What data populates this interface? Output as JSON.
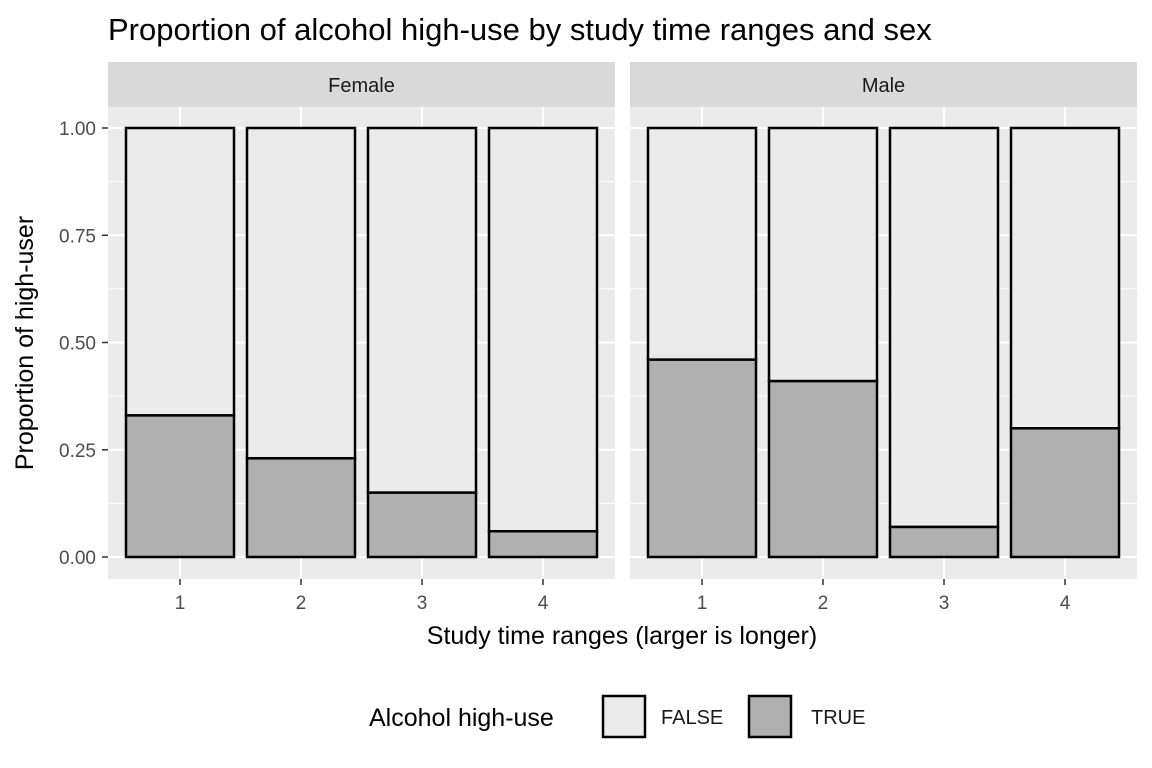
{
  "chart_data": {
    "type": "bar",
    "stacked": true,
    "title": "Proportion of alcohol high-use by study time ranges and sex",
    "xlabel": "Study time ranges (larger is longer)",
    "ylabel": "Proportion of high-user",
    "ylim": [
      0,
      1
    ],
    "yticks": [
      "0.00",
      "0.25",
      "0.50",
      "0.75",
      "1.00"
    ],
    "categories": [
      "1",
      "2",
      "3",
      "4"
    ],
    "legend": {
      "title": "Alcohol high-use",
      "position": "bottom",
      "entries": [
        "FALSE",
        "TRUE"
      ]
    },
    "colors": {
      "FALSE": "#ebebeb",
      "TRUE": "#b0b0b0",
      "panel": "#ebebeb",
      "strip": "#d9d9d9",
      "grid": "#ffffff",
      "outline": "#000000"
    },
    "grid": true,
    "facets": [
      {
        "name": "Female",
        "series": [
          {
            "name": "TRUE",
            "values": [
              0.33,
              0.23,
              0.15,
              0.06
            ]
          },
          {
            "name": "FALSE",
            "values": [
              0.67,
              0.77,
              0.85,
              0.94
            ]
          }
        ]
      },
      {
        "name": "Male",
        "series": [
          {
            "name": "TRUE",
            "values": [
              0.46,
              0.41,
              0.07,
              0.3
            ]
          },
          {
            "name": "FALSE",
            "values": [
              0.54,
              0.59,
              0.93,
              0.7
            ]
          }
        ]
      }
    ]
  }
}
